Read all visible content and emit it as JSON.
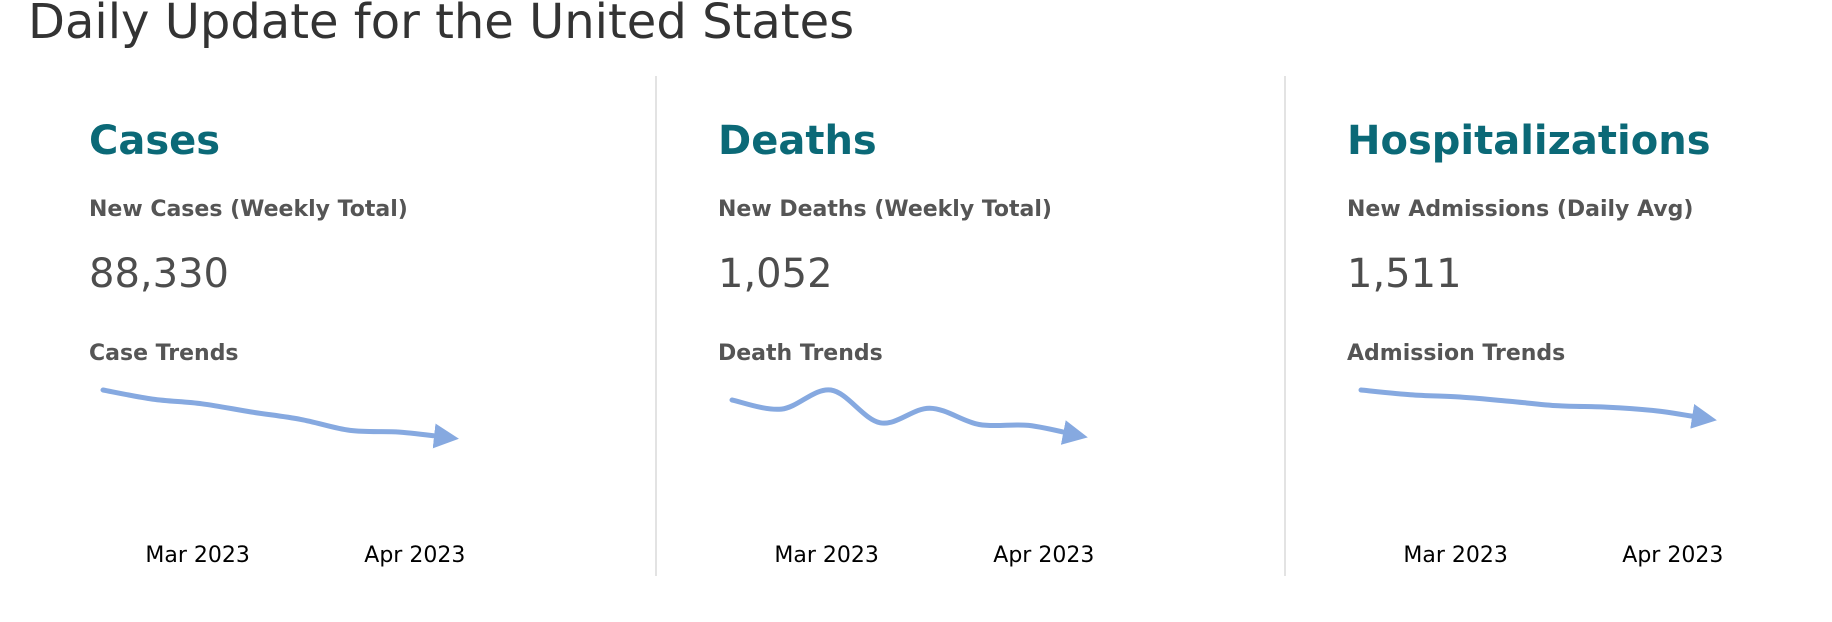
{
  "page": {
    "title": "Daily Update for the United States"
  },
  "panels": [
    {
      "heading": "Cases",
      "metric_label": "New Cases (Weekly Total)",
      "metric_value": "88,330",
      "trend_label": "Case Trends"
    },
    {
      "heading": "Deaths",
      "metric_label": "New Deaths (Weekly Total)",
      "metric_value": "1,052",
      "trend_label": "Death Trends"
    },
    {
      "heading": "Hospitalizations",
      "metric_label": "New Admissions (Daily Avg)",
      "metric_value": "1,511",
      "trend_label": "Admission Trends"
    }
  ],
  "colors": {
    "heading": "#0b6977",
    "trend_line": "#86a9e0",
    "divider": "#e3e3e3"
  },
  "chart_data": [
    {
      "type": "line",
      "x": [
        "2023-02-23",
        "2023-03-02",
        "2023-03-09",
        "2023-03-16",
        "2023-03-23",
        "2023-03-30",
        "2023-04-06",
        "2023-04-13"
      ],
      "x_tick_labels": [
        "Mar 2023",
        "Apr 2023"
      ],
      "x_tick_positions": [
        "2023-03-01",
        "2023-04-01"
      ],
      "series": [
        {
          "values": [
            100,
            91.7,
            87.5,
            80,
            73.3,
            63.3,
            61.7,
            56.7
          ]
        }
      ],
      "ylim": [
        0,
        100
      ],
      "grid": false,
      "legend": "none"
    },
    {
      "type": "line",
      "x": [
        "2023-02-23",
        "2023-03-02",
        "2023-03-09",
        "2023-03-16",
        "2023-03-23",
        "2023-03-30",
        "2023-04-06",
        "2023-04-13"
      ],
      "x_tick_labels": [
        "Mar 2023",
        "Apr 2023"
      ],
      "x_tick_positions": [
        "2023-03-01",
        "2023-04-01"
      ],
      "series": [
        {
          "values": [
            90.9,
            82.6,
            100,
            70.2,
            83.5,
            68.6,
            67.8,
            58.7
          ]
        }
      ],
      "ylim": [
        0,
        100
      ],
      "grid": false,
      "legend": "none"
    },
    {
      "type": "line",
      "x": [
        "2023-02-23",
        "2023-03-02",
        "2023-03-09",
        "2023-03-16",
        "2023-03-23",
        "2023-03-30",
        "2023-04-06",
        "2023-04-13"
      ],
      "x_tick_labels": [
        "Mar 2023",
        "Apr 2023"
      ],
      "x_tick_positions": [
        "2023-03-01",
        "2023-04-01"
      ],
      "series": [
        {
          "values": [
            100,
            95.7,
            93.6,
            89.8,
            85.6,
            84.4,
            80.9,
            73.9
          ]
        }
      ],
      "ylim": [
        0,
        100
      ],
      "grid": false,
      "legend": "none"
    }
  ]
}
